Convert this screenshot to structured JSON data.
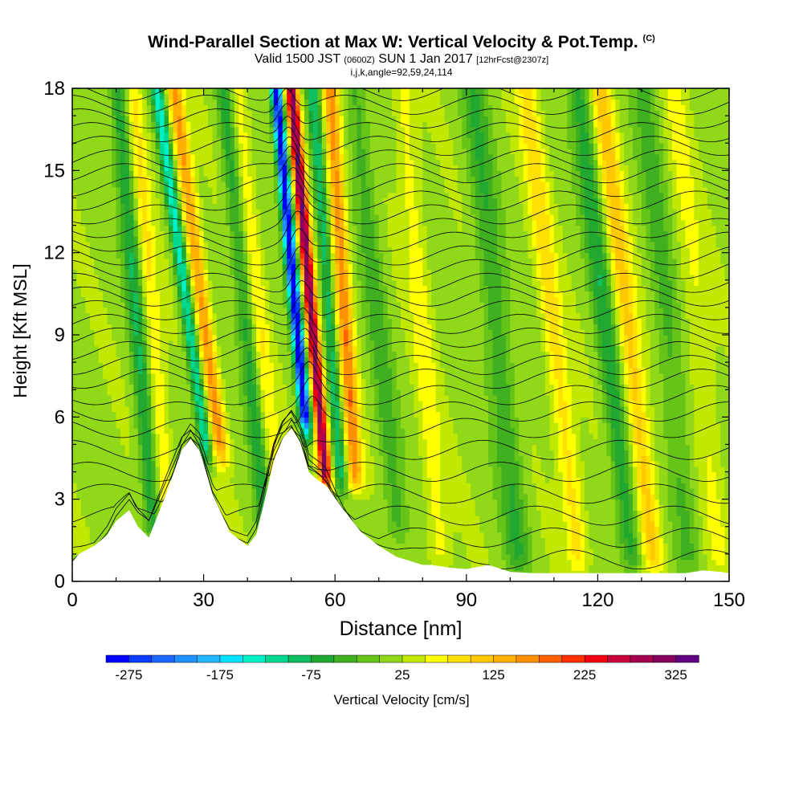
{
  "title": {
    "line1": "Wind-Parallel Section at Max W: Vertical Velocity & Pot.Temp.",
    "copyright": "(C)",
    "line2_main": "Valid 1500 JST",
    "line2_utc": "(0600Z)",
    "line2_date": "SUN 1 Jan 2017",
    "line2_fcst": "[12hrFcst@2307z]",
    "line3": "i,j,k,angle=92,59,24,114"
  },
  "chart_data": {
    "type": "heatmap",
    "xlabel": "Distance [nm]",
    "ylabel": "Height [Kft MSL]",
    "xlim": [
      0,
      150
    ],
    "ylim": [
      0,
      18
    ],
    "x_ticks": [
      0,
      30,
      60,
      90,
      120,
      150
    ],
    "y_ticks": [
      0,
      3,
      6,
      9,
      12,
      15,
      18
    ],
    "colorbar": {
      "label": "Vertical Velocity [cm/s]",
      "tick_labels": [
        "-275",
        "-175",
        "-75",
        "25",
        "125",
        "225",
        "325"
      ],
      "bin_edges": [
        -300,
        -275,
        -250,
        -225,
        -200,
        -175,
        -150,
        -125,
        -100,
        -75,
        -50,
        -25,
        0,
        25,
        50,
        75,
        100,
        125,
        150,
        175,
        200,
        225,
        250,
        275,
        300,
        325,
        350
      ],
      "colors": [
        "#0000ff",
        "#0a3dff",
        "#1a66ff",
        "#2090ff",
        "#22b8ff",
        "#00e4ff",
        "#00f0c8",
        "#00d890",
        "#10c060",
        "#20a830",
        "#40b020",
        "#66c418",
        "#90d818",
        "#c0e800",
        "#ffff00",
        "#ffe000",
        "#ffc800",
        "#ffb000",
        "#ff9000",
        "#ff6000",
        "#ff3000",
        "#f00010",
        "#c8003c",
        "#a80050",
        "#880060",
        "#600080"
      ]
    },
    "terrain": {
      "x": [
        0,
        1.5,
        5,
        8,
        10,
        13,
        15,
        17.5,
        20,
        23,
        25,
        27,
        29,
        30,
        32,
        36,
        40,
        42,
        44,
        46,
        48,
        50,
        52,
        53,
        54,
        56,
        58,
        62,
        66,
        70,
        74,
        78,
        80,
        82,
        86,
        90,
        95,
        100,
        105,
        110,
        120,
        130,
        140,
        144,
        148,
        150
      ],
      "y": [
        0.7,
        1.0,
        1.3,
        1.7,
        2.2,
        2.6,
        2.0,
        1.6,
        2.6,
        3.9,
        4.8,
        5.2,
        4.8,
        4.3,
        3.2,
        1.8,
        1.3,
        1.7,
        3.0,
        4.4,
        5.2,
        5.6,
        5.1,
        4.6,
        4.0,
        3.7,
        3.5,
        2.6,
        1.8,
        1.3,
        0.9,
        0.7,
        0.6,
        0.6,
        0.5,
        0.45,
        0.6,
        0.35,
        0.3,
        0.3,
        0.3,
        0.3,
        0.3,
        0.4,
        0.35,
        0.3
      ]
    },
    "w_field_components": [
      {
        "x0": 51.5,
        "slope": -0.55,
        "width": 1.3,
        "amp": -330,
        "zmin": 6.0
      },
      {
        "x0": 55.0,
        "slope": -0.55,
        "width": 1.4,
        "amp": 300,
        "zmin": 4.0
      },
      {
        "x0": 59.0,
        "slope": -0.45,
        "width": 1.5,
        "amp": -110,
        "zmin": 4.0
      },
      {
        "x0": 62.5,
        "slope": -0.4,
        "width": 1.8,
        "amp": 150,
        "zmin": 4.0
      },
      {
        "x0": 27.0,
        "slope": -0.85,
        "width": 1.5,
        "amp": -150,
        "zmin": 5.0
      },
      {
        "x0": 30.5,
        "slope": -0.8,
        "width": 1.8,
        "amp": 140,
        "zmin": 5.0
      },
      {
        "x0": 15.0,
        "slope": -0.5,
        "width": 2.0,
        "amp": -90,
        "zmin": 2.0
      },
      {
        "x0": 18.5,
        "slope": -0.5,
        "width": 2.0,
        "amp": 60,
        "zmin": 2.0
      },
      {
        "x0": 40.0,
        "slope": -0.6,
        "width": 2.0,
        "amp": -80,
        "zmin": 2.0
      },
      {
        "x0": 43.0,
        "slope": -0.6,
        "width": 2.0,
        "amp": 55,
        "zmin": 2.0
      },
      {
        "x0": 70.0,
        "slope": -0.6,
        "width": 2.5,
        "amp": -55,
        "zmin": 2.0
      },
      {
        "x0": 80.0,
        "slope": -0.5,
        "width": 2.5,
        "amp": 45,
        "zmin": 1.0
      },
      {
        "x0": 97.0,
        "slope": -0.6,
        "width": 3.0,
        "amp": -65,
        "zmin": 1.0
      },
      {
        "x0": 110.0,
        "slope": -0.7,
        "width": 2.5,
        "amp": 70,
        "zmin": 1.0
      },
      {
        "x0": 122.0,
        "slope": -0.7,
        "width": 2.5,
        "amp": -85,
        "zmin": 1.0
      },
      {
        "x0": 127.0,
        "slope": -0.7,
        "width": 2.5,
        "amp": 95,
        "zmin": 1.0
      },
      {
        "x0": 136.0,
        "slope": -0.6,
        "width": 3.0,
        "amp": -50,
        "zmin": 1.0
      },
      {
        "x0": 143.0,
        "slope": -0.6,
        "width": 3.0,
        "amp": 35,
        "zmin": 1.0
      }
    ],
    "theta_levels_kft": [
      0.8,
      1.6,
      2.4,
      3.2,
      4.0,
      4.8,
      5.6,
      6.2,
      6.8,
      7.4,
      7.9,
      8.4,
      8.9,
      9.4,
      9.9,
      10.4,
      10.9,
      11.4,
      11.9,
      12.4,
      12.9,
      13.4,
      13.9,
      14.4,
      14.9,
      15.4,
      15.9,
      16.4,
      16.9,
      17.4,
      17.9
    ]
  }
}
